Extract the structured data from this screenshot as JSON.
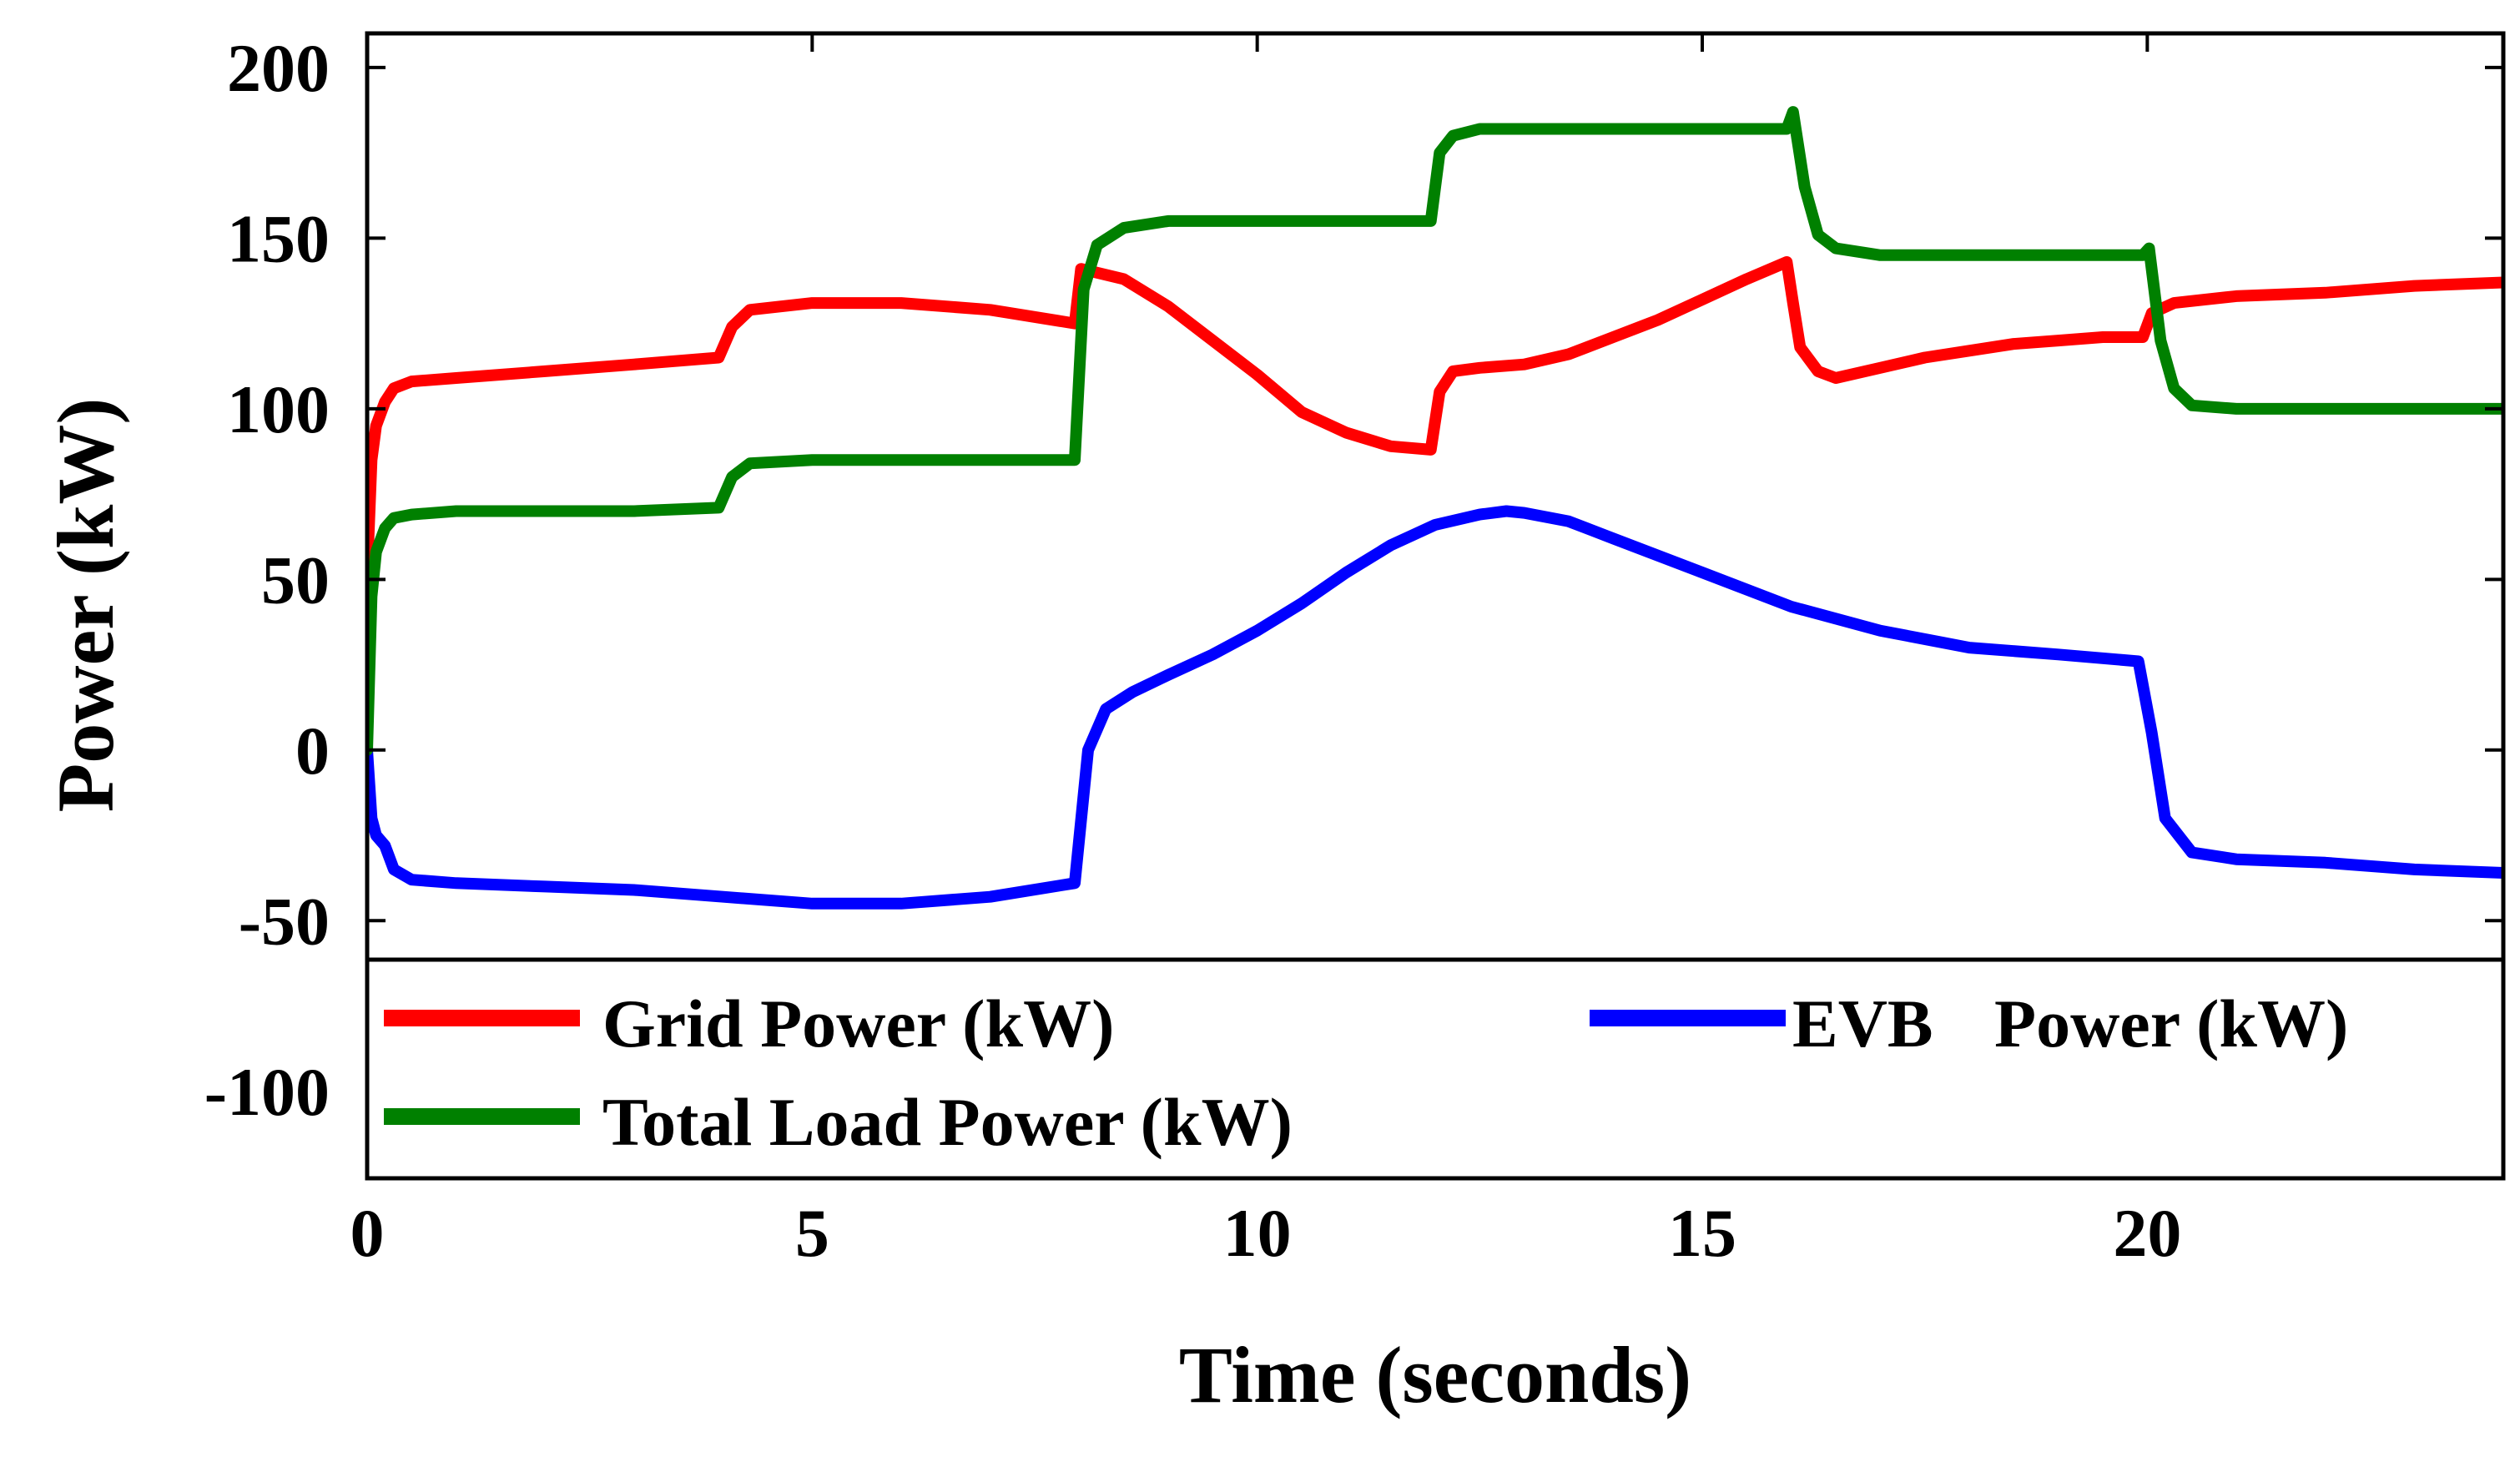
{
  "chart_data": {
    "type": "line",
    "title": "",
    "xlabel": "Time (seconds)",
    "ylabel": "Power (kW)",
    "xlim": [
      0,
      24
    ],
    "ylim": [
      -125,
      210
    ],
    "grid": false,
    "legend_position": "bottom",
    "x_ticks": [
      0,
      5,
      10,
      15,
      20
    ],
    "x_tick_labels": [
      "0",
      "5",
      "10",
      "15",
      "20"
    ],
    "y_ticks": [
      -100,
      -50,
      0,
      50,
      100,
      150,
      200
    ],
    "y_tick_labels": [
      "-100",
      "-50",
      "0",
      "50",
      "100",
      "150",
      "200"
    ],
    "series": [
      {
        "name": "Grid Power (kW)",
        "color": "#ff0000",
        "x": [
          0,
          0.05,
          0.1,
          0.2,
          0.3,
          0.5,
          1,
          2,
          3,
          3.95,
          4.1,
          4.3,
          5,
          5.5,
          6,
          7,
          7.95,
          8.02,
          8.5,
          9,
          9.5,
          10,
          10.5,
          11,
          11.5,
          11.95,
          12.05,
          12.2,
          12.5,
          13,
          13.5,
          14,
          14.5,
          15,
          15.5,
          15.95,
          16.02,
          16.1,
          16.3,
          16.5,
          17,
          17.5,
          18,
          18.5,
          19,
          19.5,
          19.95,
          20.05,
          20.3,
          21,
          22,
          23,
          24
        ],
        "values": [
          52,
          85,
          95,
          102,
          106,
          108,
          109,
          111,
          113,
          115,
          124,
          129,
          131,
          131,
          131,
          129,
          125,
          141,
          138,
          130,
          120,
          110,
          99,
          93,
          89,
          88,
          105,
          111,
          112,
          113,
          116,
          121,
          126,
          132,
          138,
          143,
          131,
          118,
          111,
          109,
          112,
          115,
          117,
          119,
          120,
          121,
          121,
          128,
          131,
          133,
          134,
          136,
          137
        ]
      },
      {
        "name": "EVB Power (kW)",
        "color": "#0000ff",
        "x": [
          0,
          0.05,
          0.1,
          0.2,
          0.3,
          0.5,
          1,
          2,
          3,
          4,
          5,
          5.5,
          6,
          7,
          7.95,
          8.1,
          8.3,
          8.6,
          9,
          9.5,
          10,
          10.5,
          11,
          11.5,
          12,
          12.5,
          12.8,
          13,
          13.5,
          14,
          15,
          16,
          17,
          18,
          19,
          19.9,
          20.05,
          20.2,
          20.5,
          21,
          22,
          23,
          24
        ],
        "values": [
          0,
          -20,
          -25,
          -28,
          -35,
          -38,
          -39,
          -40,
          -41,
          -43,
          -45,
          -45,
          -45,
          -43,
          -39,
          0,
          12,
          17,
          22,
          28,
          35,
          43,
          52,
          60,
          66,
          69,
          70,
          69.5,
          67,
          62,
          52,
          42,
          35,
          30,
          28,
          26,
          5,
          -20,
          -30,
          -32,
          -33,
          -35,
          -36
        ]
      },
      {
        "name": "Total Load Power (kW)",
        "color": "#008000",
        "x": [
          0,
          0.05,
          0.1,
          0.2,
          0.3,
          0.5,
          1,
          2,
          3,
          3.95,
          4.1,
          4.3,
          5,
          6,
          7,
          7.95,
          8.05,
          8.2,
          8.5,
          9,
          10,
          11,
          11.95,
          12.05,
          12.2,
          12.5,
          13,
          14,
          15,
          15.95,
          16.02,
          16.15,
          16.3,
          16.5,
          17,
          18,
          19,
          19.95,
          20.02,
          20.15,
          20.3,
          20.5,
          21,
          22,
          23,
          24
        ],
        "values": [
          0,
          45,
          58,
          65,
          68,
          69,
          70,
          70,
          70,
          71,
          80,
          84,
          85,
          85,
          85,
          85,
          135,
          148,
          153,
          155,
          155,
          155,
          155,
          175,
          180,
          182,
          182,
          182,
          182,
          182,
          187,
          165,
          151,
          147,
          145,
          145,
          145,
          145,
          147,
          120,
          106,
          101,
          100,
          100,
          100,
          100
        ]
      }
    ],
    "legend": [
      {
        "label": "Grid Power (kW)",
        "color": "#ff0000"
      },
      {
        "label": "EVB",
        "label_suffix": "Power (kW)",
        "color": "#0000ff"
      },
      {
        "label": "Total Load Power (kW)",
        "color": "#008000"
      }
    ]
  }
}
